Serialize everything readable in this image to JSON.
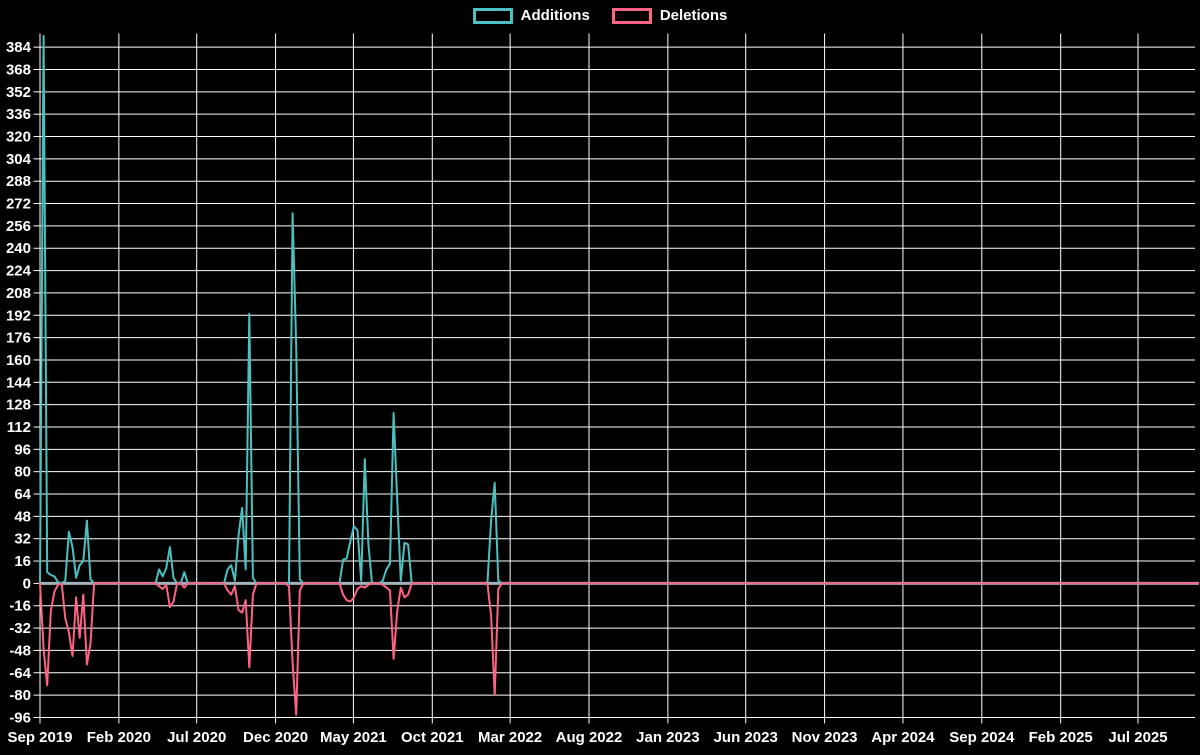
{
  "legend": {
    "items": [
      {
        "label": "Additions",
        "color": "#4BC0C0"
      },
      {
        "label": "Deletions",
        "color": "#FF6384"
      }
    ],
    "position": "top-center"
  },
  "colors": {
    "background": "#000000",
    "grid": "#FFFFFF",
    "zero_line": "#A3B3BD",
    "text": "#FFFFFF",
    "additions": "#4BC0C0",
    "deletions": "#FF6384"
  },
  "chart_data": {
    "type": "line",
    "title": "",
    "xlabel": "",
    "ylabel": "",
    "grid": true,
    "legend_position": "top-center",
    "y_axis": {
      "min": -96,
      "max": 392,
      "tick_min": -96,
      "tick_max": 384,
      "tick_step": 16
    },
    "x_axis": {
      "kind": "time-weekly",
      "start": "2019-09-01",
      "end": "2025-10-26",
      "tick_dates": [
        "2019-09-01",
        "2020-02-01",
        "2020-07-01",
        "2020-12-01",
        "2021-05-01",
        "2021-10-01",
        "2022-03-01",
        "2022-08-01",
        "2023-01-01",
        "2023-06-01",
        "2023-11-01",
        "2024-04-01",
        "2024-09-01",
        "2025-02-01",
        "2025-07-01"
      ],
      "tick_labels": [
        "Sep 2019",
        "Feb 2020",
        "Jul 2020",
        "Dec 2020",
        "May 2021",
        "Oct 2021",
        "Mar 2022",
        "Aug 2022",
        "Jan 2023",
        "Jun 2023",
        "Nov 2023",
        "Apr 2024",
        "Sep 2024",
        "Feb 2025",
        "Jul 2025"
      ]
    },
    "x": [
      "2019-09-01",
      "2019-09-08",
      "2019-09-15",
      "2019-09-22",
      "2019-09-29",
      "2019-10-06",
      "2019-10-13",
      "2019-10-20",
      "2019-10-27",
      "2019-11-03",
      "2019-11-10",
      "2019-11-17",
      "2019-11-24",
      "2019-12-01",
      "2019-12-08",
      "2019-12-15",
      "2020-01-19",
      "2020-04-12",
      "2020-04-19",
      "2020-04-26",
      "2020-05-03",
      "2020-05-10",
      "2020-05-17",
      "2020-05-24",
      "2020-05-31",
      "2020-06-07",
      "2020-06-14",
      "2020-08-16",
      "2020-08-23",
      "2020-08-30",
      "2020-09-06",
      "2020-09-13",
      "2020-09-20",
      "2020-09-27",
      "2020-10-04",
      "2020-10-11",
      "2020-10-18",
      "2020-10-25",
      "2020-12-20",
      "2020-12-27",
      "2021-01-03",
      "2021-01-10",
      "2021-01-17",
      "2021-01-24",
      "2021-04-04",
      "2021-04-11",
      "2021-04-18",
      "2021-04-25",
      "2021-05-02",
      "2021-05-09",
      "2021-05-16",
      "2021-05-23",
      "2021-05-30",
      "2021-06-06",
      "2021-06-13",
      "2021-06-20",
      "2021-06-27",
      "2021-07-04",
      "2021-07-11",
      "2021-07-18",
      "2021-07-25",
      "2021-08-01",
      "2021-08-08",
      "2021-08-15",
      "2021-08-22",
      "2022-01-16",
      "2022-01-23",
      "2022-01-30",
      "2022-02-06",
      "2022-02-13",
      "2025-10-26"
    ],
    "series": [
      {
        "name": "Additions",
        "color": "#4BC0C0",
        "values": [
          0,
          392,
          8,
          6,
          5,
          1,
          0,
          2,
          37,
          26,
          4,
          13,
          16,
          45,
          3,
          0,
          0,
          0,
          10,
          5,
          11,
          26,
          4,
          0,
          0,
          8,
          0,
          0,
          0,
          10,
          13,
          2,
          34,
          54,
          10,
          193,
          4,
          0,
          0,
          0,
          265,
          170,
          3,
          0,
          0,
          17,
          18,
          30,
          41,
          38,
          2,
          89,
          28,
          0,
          0,
          0,
          2,
          10,
          14,
          122,
          60,
          2,
          29,
          28,
          0,
          0,
          45,
          72,
          2,
          0,
          0
        ]
      },
      {
        "name": "Deletions",
        "color": "#FF6384",
        "values": [
          0,
          -47,
          -73,
          -20,
          -6,
          -1,
          0,
          -25,
          -35,
          -52,
          -10,
          -39,
          -8,
          -58,
          -43,
          0,
          0,
          0,
          -2,
          -4,
          -1,
          -17,
          -13,
          0,
          0,
          -3,
          0,
          0,
          0,
          -5,
          -8,
          -2,
          -19,
          -21,
          -12,
          -60,
          -8,
          0,
          0,
          -2,
          -57,
          -94,
          -5,
          0,
          0,
          -8,
          -12,
          -13,
          -10,
          -4,
          -2,
          -3,
          -1,
          0,
          0,
          0,
          -1,
          -3,
          -5,
          -54,
          -20,
          -3,
          -10,
          -8,
          0,
          0,
          -23,
          -80,
          -4,
          0,
          0
        ]
      }
    ]
  },
  "layout_note": "weekly additions/deletions code-frequency chart on black background"
}
